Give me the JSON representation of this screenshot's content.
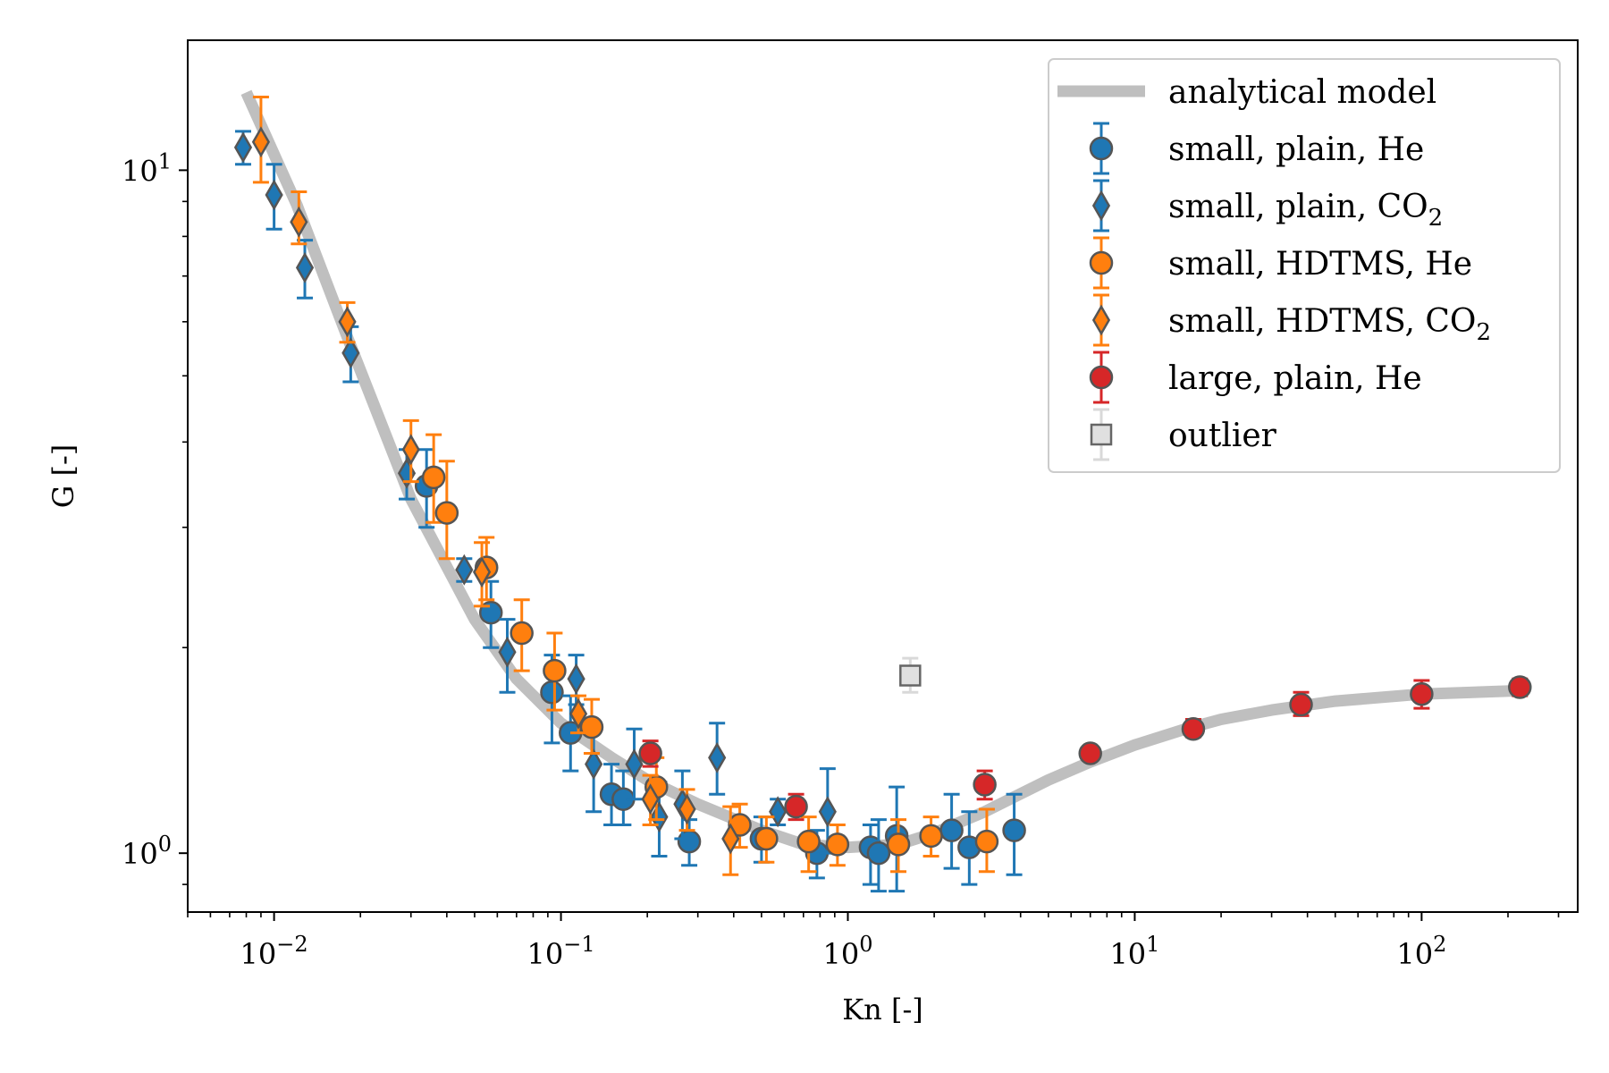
{
  "chart_data": {
    "type": "scatter",
    "title": "",
    "xlabel": "Kn [-]",
    "ylabel": "G [-]",
    "xscale": "log",
    "yscale": "log",
    "xlim": [
      0.005,
      350
    ],
    "ylim": [
      0.82,
      15.5
    ],
    "x_major_ticks": [
      {
        "value": 0.01,
        "base": "10",
        "exp": "−2"
      },
      {
        "value": 0.1,
        "base": "10",
        "exp": "−1"
      },
      {
        "value": 1,
        "base": "10",
        "exp": "0"
      },
      {
        "value": 10,
        "base": "10",
        "exp": "1"
      },
      {
        "value": 100,
        "base": "10",
        "exp": "2"
      }
    ],
    "y_major_ticks": [
      {
        "value": 1,
        "base": "10",
        "exp": "0"
      },
      {
        "value": 10,
        "base": "10",
        "exp": "1"
      }
    ],
    "legend": {
      "location": "upper right",
      "entries": [
        {
          "id": "model",
          "label": "analytical model",
          "sub": ""
        },
        {
          "id": "s_plain_he",
          "label": "small, plain, He",
          "sub": ""
        },
        {
          "id": "s_plain_co2",
          "label": "small, plain, CO",
          "sub": "2"
        },
        {
          "id": "s_hdtms_he",
          "label": "small, HDTMS, He",
          "sub": ""
        },
        {
          "id": "s_hdtms_co2",
          "label": "small, HDTMS, CO",
          "sub": "2"
        },
        {
          "id": "l_plain_he",
          "label": "large, plain, He",
          "sub": ""
        },
        {
          "id": "outlier",
          "label": "outlier",
          "sub": ""
        }
      ]
    },
    "model": {
      "name": "analytical model",
      "color": "#bfbfbf",
      "x": [
        0.008,
        0.012,
        0.018,
        0.03,
        0.05,
        0.07,
        0.1,
        0.15,
        0.2,
        0.3,
        0.5,
        0.7,
        1.0,
        1.5,
        2.0,
        3.0,
        5.0,
        7.0,
        10,
        15,
        20,
        30,
        50,
        100,
        220
      ],
      "y": [
        13.0,
        8.9,
        5.7,
        3.3,
        2.2,
        1.8,
        1.55,
        1.38,
        1.28,
        1.18,
        1.08,
        1.03,
        1.02,
        1.03,
        1.07,
        1.15,
        1.28,
        1.36,
        1.44,
        1.52,
        1.57,
        1.62,
        1.67,
        1.71,
        1.73
      ]
    },
    "series": [
      {
        "id": "s_plain_he",
        "name": "small, plain, He",
        "marker": "circle",
        "fill": "#1f77b4",
        "errcolor": "#1f77b4",
        "points": [
          {
            "x": 0.034,
            "y": 3.45,
            "lo": 3.0,
            "hi": 3.9
          },
          {
            "x": 0.057,
            "y": 2.25,
            "lo": 2.0,
            "hi": 2.5
          },
          {
            "x": 0.093,
            "y": 1.72,
            "lo": 1.45,
            "hi": 1.95
          },
          {
            "x": 0.108,
            "y": 1.5,
            "lo": 1.32,
            "hi": 1.7
          },
          {
            "x": 0.15,
            "y": 1.22,
            "lo": 1.1,
            "hi": 1.35
          },
          {
            "x": 0.165,
            "y": 1.2,
            "lo": 1.1,
            "hi": 1.32
          },
          {
            "x": 0.28,
            "y": 1.04,
            "lo": 0.96,
            "hi": 1.12
          },
          {
            "x": 0.5,
            "y": 1.05,
            "lo": 0.97,
            "hi": 1.13
          },
          {
            "x": 0.78,
            "y": 1.0,
            "lo": 0.92,
            "hi": 1.08
          },
          {
            "x": 1.2,
            "y": 1.02,
            "lo": 0.9,
            "hi": 1.1
          },
          {
            "x": 1.28,
            "y": 1.0,
            "lo": 0.88,
            "hi": 1.12
          },
          {
            "x": 1.48,
            "y": 1.06,
            "lo": 0.88,
            "hi": 1.25
          },
          {
            "x": 2.3,
            "y": 1.08,
            "lo": 0.95,
            "hi": 1.22
          },
          {
            "x": 2.65,
            "y": 1.02,
            "lo": 0.9,
            "hi": 1.15
          },
          {
            "x": 3.8,
            "y": 1.08,
            "lo": 0.93,
            "hi": 1.22
          }
        ]
      },
      {
        "id": "s_plain_co2",
        "name": "small, plain, CO2",
        "marker": "diamond",
        "fill": "#1f77b4",
        "errcolor": "#1f77b4",
        "points": [
          {
            "x": 0.0078,
            "y": 10.8,
            "lo": 10.2,
            "hi": 11.4
          },
          {
            "x": 0.01,
            "y": 9.2,
            "lo": 8.2,
            "hi": 10.2
          },
          {
            "x": 0.0128,
            "y": 7.2,
            "lo": 6.5,
            "hi": 7.9
          },
          {
            "x": 0.0185,
            "y": 5.4,
            "lo": 4.9,
            "hi": 5.9
          },
          {
            "x": 0.029,
            "y": 3.6,
            "lo": 3.3,
            "hi": 3.9
          },
          {
            "x": 0.046,
            "y": 2.6,
            "lo": 2.5,
            "hi": 2.7
          },
          {
            "x": 0.065,
            "y": 1.97,
            "lo": 1.72,
            "hi": 2.2
          },
          {
            "x": 0.113,
            "y": 1.8,
            "lo": 1.65,
            "hi": 1.95
          },
          {
            "x": 0.13,
            "y": 1.35,
            "lo": 1.15,
            "hi": 1.55
          },
          {
            "x": 0.18,
            "y": 1.35,
            "lo": 1.2,
            "hi": 1.52
          },
          {
            "x": 0.22,
            "y": 1.13,
            "lo": 0.99,
            "hi": 1.27
          },
          {
            "x": 0.265,
            "y": 1.18,
            "lo": 1.05,
            "hi": 1.32
          },
          {
            "x": 0.35,
            "y": 1.38,
            "lo": 1.22,
            "hi": 1.55
          },
          {
            "x": 0.57,
            "y": 1.15,
            "lo": 1.1,
            "hi": 1.2
          },
          {
            "x": 0.85,
            "y": 1.15,
            "lo": 1.0,
            "hi": 1.33
          }
        ]
      },
      {
        "id": "s_hdtms_he",
        "name": "small, HDTMS, He",
        "marker": "circle",
        "fill": "#ff7f0e",
        "errcolor": "#ff7f0e",
        "points": [
          {
            "x": 0.036,
            "y": 3.55,
            "lo": 3.05,
            "hi": 4.1
          },
          {
            "x": 0.04,
            "y": 3.15,
            "lo": 2.7,
            "hi": 3.75
          },
          {
            "x": 0.055,
            "y": 2.62,
            "lo": 2.35,
            "hi": 2.9
          },
          {
            "x": 0.073,
            "y": 2.1,
            "lo": 1.85,
            "hi": 2.35
          },
          {
            "x": 0.095,
            "y": 1.85,
            "lo": 1.62,
            "hi": 2.1
          },
          {
            "x": 0.128,
            "y": 1.53,
            "lo": 1.4,
            "hi": 1.68
          },
          {
            "x": 0.215,
            "y": 1.25,
            "lo": 1.12,
            "hi": 1.38
          },
          {
            "x": 0.42,
            "y": 1.1,
            "lo": 1.02,
            "hi": 1.18
          },
          {
            "x": 0.52,
            "y": 1.05,
            "lo": 0.97,
            "hi": 1.13
          },
          {
            "x": 0.73,
            "y": 1.04,
            "lo": 0.94,
            "hi": 1.13
          },
          {
            "x": 0.92,
            "y": 1.03,
            "lo": 0.96,
            "hi": 1.1
          },
          {
            "x": 1.5,
            "y": 1.03,
            "lo": 0.94,
            "hi": 1.12
          },
          {
            "x": 1.95,
            "y": 1.06,
            "lo": 0.99,
            "hi": 1.13
          },
          {
            "x": 3.05,
            "y": 1.04,
            "lo": 0.94,
            "hi": 1.16
          }
        ]
      },
      {
        "id": "s_hdtms_co2",
        "name": "small, HDTMS, CO2",
        "marker": "diamond",
        "fill": "#ff7f0e",
        "errcolor": "#ff7f0e",
        "points": [
          {
            "x": 0.009,
            "y": 11.0,
            "lo": 9.6,
            "hi": 12.8
          },
          {
            "x": 0.0122,
            "y": 8.4,
            "lo": 7.8,
            "hi": 9.3
          },
          {
            "x": 0.018,
            "y": 6.0,
            "lo": 5.6,
            "hi": 6.4
          },
          {
            "x": 0.03,
            "y": 3.9,
            "lo": 3.5,
            "hi": 4.3
          },
          {
            "x": 0.053,
            "y": 2.58,
            "lo": 2.3,
            "hi": 2.85
          },
          {
            "x": 0.115,
            "y": 1.6,
            "lo": 1.5,
            "hi": 1.7
          },
          {
            "x": 0.205,
            "y": 1.2,
            "lo": 1.1,
            "hi": 1.3
          },
          {
            "x": 0.275,
            "y": 1.16,
            "lo": 1.08,
            "hi": 1.24
          },
          {
            "x": 0.39,
            "y": 1.05,
            "lo": 0.93,
            "hi": 1.17
          }
        ]
      },
      {
        "id": "l_plain_he",
        "name": "large, plain, He",
        "marker": "circle",
        "fill": "#d62728",
        "errcolor": "#d62728",
        "points": [
          {
            "x": 0.205,
            "y": 1.4,
            "lo": 1.34,
            "hi": 1.46
          },
          {
            "x": 0.66,
            "y": 1.17,
            "lo": 1.12,
            "hi": 1.22
          },
          {
            "x": 3.0,
            "y": 1.26,
            "lo": 1.2,
            "hi": 1.32
          },
          {
            "x": 7.0,
            "y": 1.4,
            "lo": 1.37,
            "hi": 1.43
          },
          {
            "x": 16,
            "y": 1.52,
            "lo": 1.48,
            "hi": 1.57
          },
          {
            "x": 38,
            "y": 1.65,
            "lo": 1.59,
            "hi": 1.72
          },
          {
            "x": 100,
            "y": 1.71,
            "lo": 1.63,
            "hi": 1.79
          },
          {
            "x": 220,
            "y": 1.75,
            "lo": 1.7,
            "hi": 1.8
          }
        ]
      },
      {
        "id": "outlier",
        "name": "outlier",
        "marker": "square",
        "fill": "#e0e0e0",
        "errcolor": "#d9d9d9",
        "points": [
          {
            "x": 1.65,
            "y": 1.82,
            "lo": 1.72,
            "hi": 1.93
          }
        ]
      }
    ]
  }
}
